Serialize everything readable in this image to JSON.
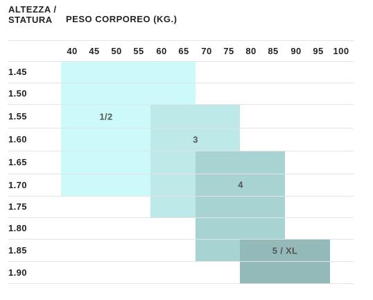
{
  "header": {
    "height_label": "ALTEZZA / STATURA",
    "weight_label": "PESO CORPOREO (KG.)"
  },
  "weights": [
    "40",
    "45",
    "50",
    "55",
    "60",
    "65",
    "70",
    "75",
    "80",
    "85",
    "90",
    "95",
    "100"
  ],
  "heights": [
    "1.45",
    "1.50",
    "1.55",
    "1.60",
    "1.65",
    "1.70",
    "1.75",
    "1.80",
    "1.85",
    "1.90"
  ],
  "sizes": [
    {
      "label": "1/2",
      "weight_range": [
        "40",
        "70"
      ],
      "height_range": [
        "1.45",
        "1.70"
      ],
      "color": "#ccfafa"
    },
    {
      "label": "3",
      "weight_range": [
        "60",
        "80"
      ],
      "height_range": [
        "1.55",
        "1.75"
      ],
      "color": "#bde9e9"
    },
    {
      "label": "4",
      "weight_range": [
        "70",
        "90"
      ],
      "height_range": [
        "1.65",
        "1.85"
      ],
      "color": "#a7d3d3"
    },
    {
      "label": "5 / XL",
      "weight_range": [
        "80",
        "100"
      ],
      "height_range": [
        "1.85",
        "1.90"
      ],
      "color": "#93b9b8"
    }
  ]
}
